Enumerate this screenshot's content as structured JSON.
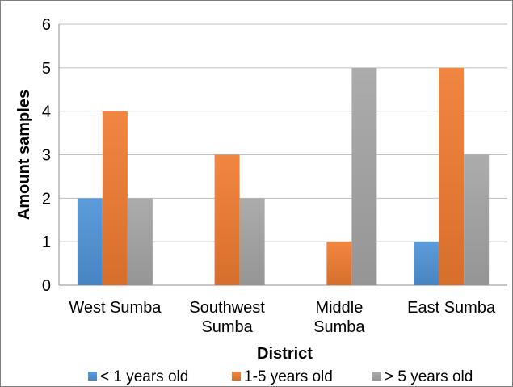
{
  "chart_data": {
    "type": "bar",
    "categories": [
      [
        "West Sumba"
      ],
      [
        "Southwest",
        "Sumba"
      ],
      [
        "Middle",
        "Sumba"
      ],
      [
        "East Sumba"
      ]
    ],
    "series": [
      {
        "name": "< 1 years old",
        "color": "#4f93d7",
        "values": [
          2,
          0,
          0,
          1
        ]
      },
      {
        "name": "1-5 years old",
        "color": "#ef7b31",
        "values": [
          4,
          3,
          1,
          5
        ]
      },
      {
        "name": "> 5 years old",
        "color": "#a5a5a5",
        "values": [
          2,
          2,
          5,
          3
        ]
      }
    ],
    "xlabel": "District",
    "ylabel": "Amount samples",
    "ylim": [
      0,
      6
    ],
    "yticks": [
      0,
      1,
      2,
      3,
      4,
      5,
      6
    ],
    "grid": true,
    "legend": "bottom"
  }
}
